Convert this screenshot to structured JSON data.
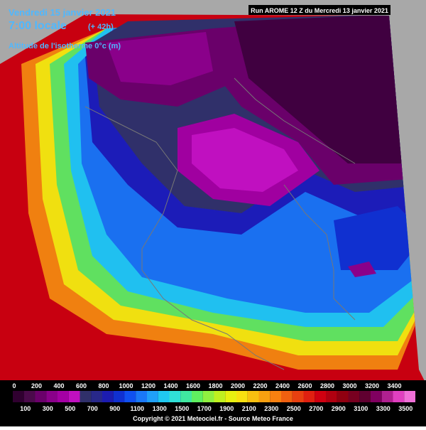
{
  "header": {
    "date": "Vendredi 15 janvier 2021",
    "time": "7:00 locale",
    "lead": "(+ 42h)",
    "field": "Altitude de l'isotherme 0°c (m)",
    "run": "Run AROME 12 Z du Mercredi 13 janvier 2021"
  },
  "legend": {
    "top_labels": [
      0,
      200,
      400,
      600,
      800,
      1000,
      1200,
      1400,
      1600,
      1800,
      2000,
      2200,
      2400,
      2600,
      2800,
      3000,
      3200,
      3400
    ],
    "bottom_labels": [
      100,
      300,
      500,
      700,
      900,
      1100,
      1300,
      1500,
      1700,
      1900,
      2100,
      2300,
      2500,
      2700,
      2900,
      3100,
      3300,
      3500
    ],
    "colors": [
      "#300030",
      "#4a0a4a",
      "#6a006a",
      "#8a008a",
      "#a400a4",
      "#c010c0",
      "#30306a",
      "#28288a",
      "#1c1cb0",
      "#1030d0",
      "#1050f0",
      "#1a78f8",
      "#20a0f8",
      "#20c8f0",
      "#30e0d8",
      "#40e8a0",
      "#60f060",
      "#90f040",
      "#c0f020",
      "#e8f010",
      "#f8e010",
      "#f8c010",
      "#f8a010",
      "#f88010",
      "#f06010",
      "#e84010",
      "#e02010",
      "#d00010",
      "#b00010",
      "#900010",
      "#780020",
      "#600030",
      "#800060",
      "#b02090",
      "#e040c0",
      "#f070d8"
    ]
  },
  "footer": {
    "copyright": "Copyright © 2021 Meteociel.fr - Source Meteo France"
  }
}
